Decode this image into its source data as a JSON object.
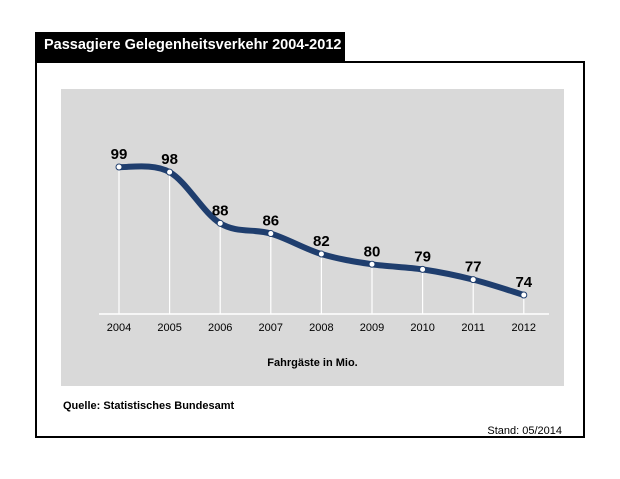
{
  "chart_data": {
    "type": "line",
    "title": "Passagiere Gelegenheitsverkehr 2004-2012",
    "xlabel": "Fahrgäste in Mio.",
    "ylabel": "",
    "x": [
      "2004",
      "2005",
      "2006",
      "2007",
      "2008",
      "2009",
      "2010",
      "2011",
      "2012"
    ],
    "series": [
      {
        "values": [
          99,
          98,
          88,
          86,
          82,
          80,
          79,
          77,
          74
        ],
        "color": "#1f3e6e"
      }
    ],
    "grid": false,
    "legend": "none"
  },
  "footer": {
    "source": "Quelle: Statistisches Bundesamt",
    "stand": "Stand: 05/2014"
  },
  "colors": {
    "line": "#1f3e6e",
    "plot_background": "#d9d9d9",
    "title_background": "#000000"
  }
}
